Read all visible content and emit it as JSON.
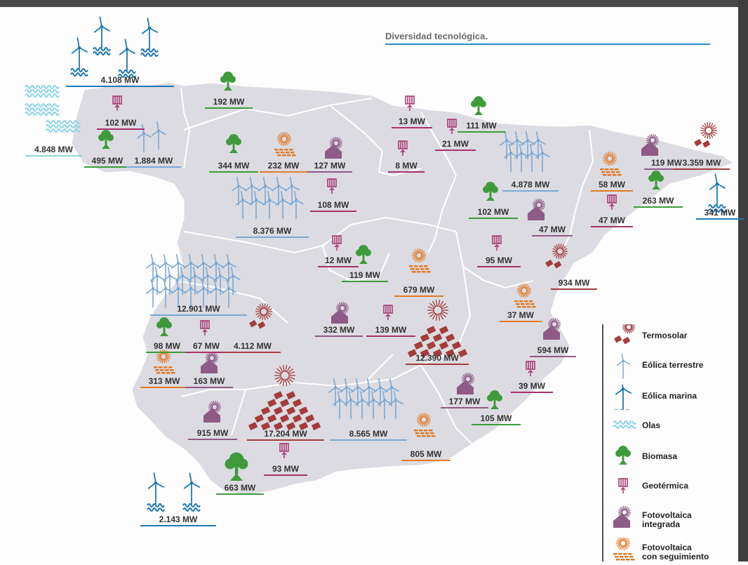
{
  "title": "Diversidad tecnológica.",
  "colors": {
    "termosolar": "#a33d3d",
    "eolica": "#7aa9d6",
    "marina": "#1f78b4",
    "olas": "#8fd4ea",
    "biomasa": "#3f9a3c",
    "geotermica": "#a6336c",
    "fv_integrada": "#8e5a86",
    "fv_seguimiento": "#e07b2a",
    "map": "#dcdbe1"
  },
  "labels": [
    {
      "id": "galicia-marina",
      "text": "4.108 MW",
      "tech": "marina"
    },
    {
      "id": "galicia-olas",
      "text": "4.848 MW",
      "tech": "olas"
    },
    {
      "id": "galicia-geo",
      "text": "102 MW",
      "tech": "geotermica"
    },
    {
      "id": "galicia-bio",
      "text": "495 MW",
      "tech": "biomasa"
    },
    {
      "id": "galicia-eolica",
      "text": "1.884 MW",
      "tech": "eolica"
    },
    {
      "id": "asturias-bio",
      "text": "192 MW",
      "tech": "biomasa"
    },
    {
      "id": "cyl-bio",
      "text": "344 MW",
      "tech": "biomasa"
    },
    {
      "id": "cyl-fvs",
      "text": "232 MW",
      "tech": "fv_seguimiento"
    },
    {
      "id": "cyl-fvi",
      "text": "127 MW",
      "tech": "fv_integrada"
    },
    {
      "id": "cyl-geo",
      "text": "108 MW",
      "tech": "geotermica"
    },
    {
      "id": "cyl-eolica",
      "text": "8.376 MW",
      "tech": "eolica"
    },
    {
      "id": "pv-geo",
      "text": "13 MW",
      "tech": "geotermica"
    },
    {
      "id": "nav-bio",
      "text": "111 MW",
      "tech": "biomasa"
    },
    {
      "id": "nav-geo",
      "text": "21 MW",
      "tech": "geotermica"
    },
    {
      "id": "rioja-geo",
      "text": "8 MW",
      "tech": "geotermica"
    },
    {
      "id": "aragon-eolica",
      "text": "4.878 MW",
      "tech": "eolica"
    },
    {
      "id": "aragon-bio",
      "text": "102 MW",
      "tech": "biomasa"
    },
    {
      "id": "aragon-fvi",
      "text": "47 MW",
      "tech": "fv_integrada"
    },
    {
      "id": "aragon-geo",
      "text": "95 MW",
      "tech": "geotermica"
    },
    {
      "id": "cat-fvi",
      "text": "119 MW",
      "tech": "fv_integrada"
    },
    {
      "id": "cat-termo",
      "text": "3.359 MW",
      "tech": "termosolar"
    },
    {
      "id": "cat-fvs",
      "text": "58 MW",
      "tech": "fv_seguimiento"
    },
    {
      "id": "cat-bio",
      "text": "263 MW",
      "tech": "biomasa"
    },
    {
      "id": "cat-geo",
      "text": "47 MW",
      "tech": "geotermica"
    },
    {
      "id": "cat-marina",
      "text": "341 MW",
      "tech": "marina"
    },
    {
      "id": "mad-geo",
      "text": "12 MW",
      "tech": "geotermica"
    },
    {
      "id": "mad-bio",
      "text": "119 MW",
      "tech": "biomasa"
    },
    {
      "id": "clm-fvs",
      "text": "679 MW",
      "tech": "fv_seguimiento"
    },
    {
      "id": "clm-fvi",
      "text": "332 MW",
      "tech": "fv_integrada"
    },
    {
      "id": "clm-geo",
      "text": "139 MW",
      "tech": "geotermica"
    },
    {
      "id": "clm-termo",
      "text": "12.390 MW",
      "tech": "termosolar"
    },
    {
      "id": "val-termo",
      "text": "934 MW",
      "tech": "termosolar"
    },
    {
      "id": "val-fvs",
      "text": "37 MW",
      "tech": "fv_seguimiento"
    },
    {
      "id": "val-fvi",
      "text": "594 MW",
      "tech": "fv_integrada"
    },
    {
      "id": "val-geo",
      "text": "39 MW",
      "tech": "geotermica"
    },
    {
      "id": "ext-eolica",
      "text": "12.901 MW",
      "tech": "eolica"
    },
    {
      "id": "ext-bio",
      "text": "98 MW",
      "tech": "biomasa"
    },
    {
      "id": "ext-geo",
      "text": "67 MW",
      "tech": "geotermica"
    },
    {
      "id": "ext-termo",
      "text": "4.112 MW",
      "tech": "termosolar"
    },
    {
      "id": "ext-fvs",
      "text": "313 MW",
      "tech": "fv_seguimiento"
    },
    {
      "id": "ext-fvi",
      "text": "163 MW",
      "tech": "fv_integrada"
    },
    {
      "id": "mur-fvi",
      "text": "177 MW",
      "tech": "fv_integrada"
    },
    {
      "id": "mur-bio",
      "text": "105 MW",
      "tech": "biomasa"
    },
    {
      "id": "and-fvi",
      "text": "915 MW",
      "tech": "fv_integrada"
    },
    {
      "id": "and-termo",
      "text": "17.204 MW",
      "tech": "termosolar"
    },
    {
      "id": "and-eolica",
      "text": "8.565 MW",
      "tech": "eolica"
    },
    {
      "id": "and-fvs",
      "text": "805 MW",
      "tech": "fv_seguimiento"
    },
    {
      "id": "and-geo",
      "text": "93 MW",
      "tech": "geotermica"
    },
    {
      "id": "and-bio",
      "text": "663 MW",
      "tech": "biomasa"
    },
    {
      "id": "and-marina",
      "text": "2.143 MW",
      "tech": "marina"
    }
  ],
  "legend": [
    {
      "icon": "termosolar",
      "line1": "Termosolar",
      "line2": ""
    },
    {
      "icon": "eolica",
      "line1": "Eólica terrestre",
      "line2": ""
    },
    {
      "icon": "marina",
      "line1": "Eólica marina",
      "line2": ""
    },
    {
      "icon": "olas",
      "line1": "Olas",
      "line2": ""
    },
    {
      "icon": "biomasa",
      "line1": "Biomasa",
      "line2": ""
    },
    {
      "icon": "geotermica",
      "line1": "Geotérmica",
      "line2": ""
    },
    {
      "icon": "fv_integrada",
      "line1": "Fotovoltaica",
      "line2": "integrada"
    },
    {
      "icon": "fv_seguimiento",
      "line1": "Fotovoltaica",
      "line2": "con seguimiento"
    }
  ]
}
